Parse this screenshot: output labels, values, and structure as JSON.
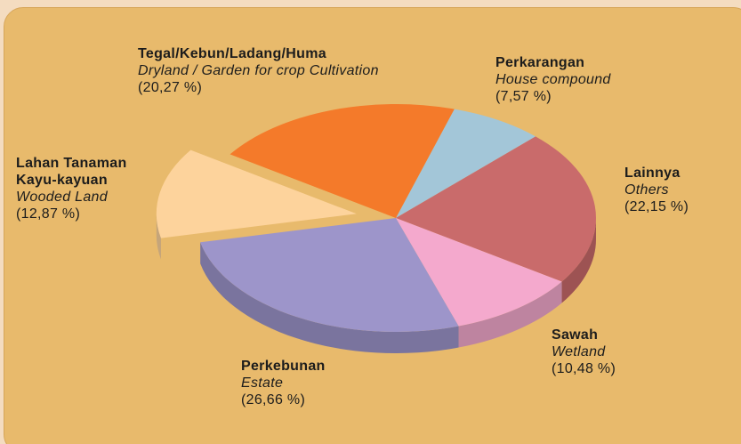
{
  "chart_data": {
    "type": "pie",
    "categories": [
      "Perkarangan",
      "Lainnya",
      "Sawah",
      "Perkebunan",
      "Lahan Tanaman Kayu-kayuan",
      "Tegal/Kebun/Ladang/Huma"
    ],
    "translations": [
      "House compound",
      "Others",
      "Wetland",
      "Estate",
      "Wooded Land",
      "Dryland / Garden for crop Cultivation"
    ],
    "values": [
      7.57,
      22.15,
      10.48,
      26.66,
      12.87,
      20.27
    ],
    "value_labels": [
      "(7,57 %)",
      "(22,15 %)",
      "(10,48 %)",
      "(26,66 %)",
      "(12,87 %)",
      "(20,27 %)"
    ],
    "colors": [
      "#a3c6d8",
      "#c96b6b",
      "#f4a9cd",
      "#9d95ca",
      "#fdd39c",
      "#f47a2a"
    ],
    "exploded": "Lahan Tanaman Kayu-kayuan"
  }
}
